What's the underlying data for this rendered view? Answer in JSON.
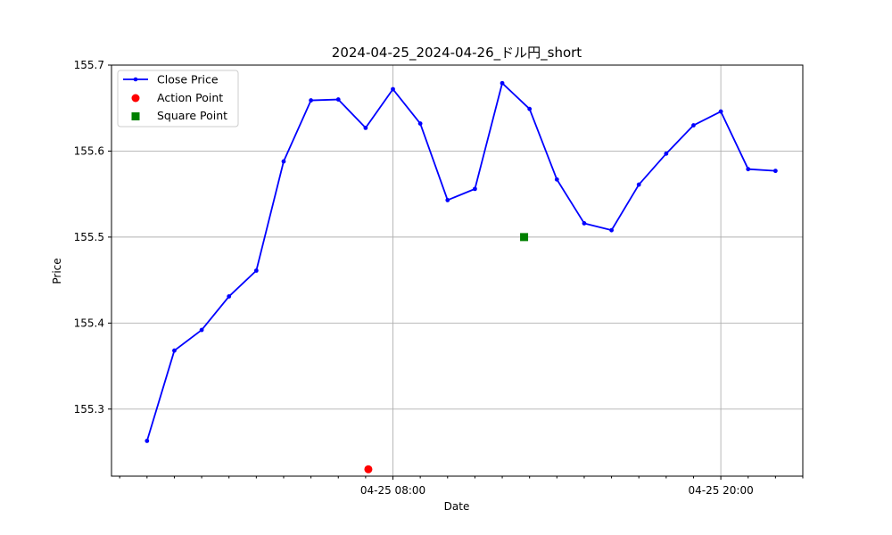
{
  "chart_data": {
    "type": "line",
    "title": "2024-04-25_2024-04-26_ドル円_short",
    "xlabel": "Date",
    "ylabel": "Price",
    "x_tick_labels": [
      {
        "label": "04-25 08:00",
        "hour": 8
      },
      {
        "label": "04-25 20:00",
        "hour": 20
      }
    ],
    "x_range_hours": [
      -2.3,
      23.0
    ],
    "minor_tick_hours": [
      -2,
      -1,
      0,
      1,
      2,
      3,
      4,
      5,
      6,
      7,
      9,
      10,
      11,
      12,
      13,
      14,
      15,
      16,
      17,
      18,
      19,
      21,
      22,
      23
    ],
    "y_ticks": [
      155.3,
      155.4,
      155.5,
      155.6,
      155.7
    ],
    "y_tick_labels": [
      "155.3",
      "155.4",
      "155.5",
      "155.6",
      "155.7"
    ],
    "ylim": [
      155.222,
      155.7
    ],
    "grid": true,
    "legend": {
      "placement": "top-left",
      "entries": [
        "Close Price",
        "Action Point",
        "Square Point"
      ]
    },
    "series": [
      {
        "name": "Close Price",
        "color": "#0000ff",
        "marker": "dot",
        "x_hours": [
          -1,
          0,
          1,
          2,
          3,
          4,
          5,
          6,
          7,
          8,
          9,
          10,
          11,
          12,
          13,
          14,
          15,
          16,
          17,
          18,
          19,
          20,
          21,
          22
        ],
        "values": [
          155.263,
          155.368,
          155.392,
          155.431,
          155.461,
          155.588,
          155.659,
          155.66,
          155.627,
          155.672,
          155.632,
          155.543,
          155.556,
          155.679,
          155.649,
          155.567,
          155.516,
          155.508,
          155.561,
          155.597,
          155.63,
          155.646,
          155.579,
          155.577
        ]
      },
      {
        "name": "Action Point",
        "color": "#ff0000",
        "marker": "circle",
        "x_hours": [
          7.1
        ],
        "values": [
          155.23
        ]
      },
      {
        "name": "Square Point",
        "color": "#008000",
        "marker": "square",
        "x_hours": [
          12.8
        ],
        "values": [
          155.5
        ]
      }
    ]
  }
}
